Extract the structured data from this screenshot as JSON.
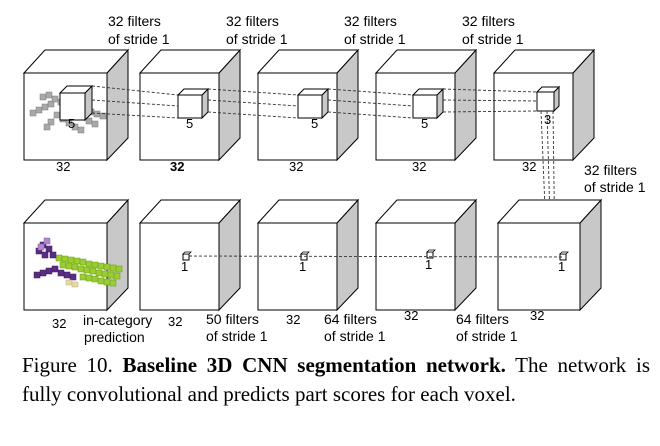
{
  "top_row": {
    "filter_labels": [
      {
        "line1": "32 filters",
        "line2": "of stride 1"
      },
      {
        "line1": "32 filters",
        "line2": "of stride 1"
      },
      {
        "line1": "32 filters",
        "line2": "of stride 1"
      },
      {
        "line1": "32 filters",
        "line2": "of stride 1"
      }
    ],
    "size_labels": [
      "32",
      "32",
      "32",
      "32",
      "32"
    ],
    "kernel_labels": [
      "5",
      "5",
      "5",
      "5",
      "3"
    ]
  },
  "connector_label": {
    "line1": "32 filters",
    "line2": "of stride 1"
  },
  "bottom_row": {
    "filter_labels": [
      {
        "line1": "50 filters",
        "line2": "of stride 1"
      },
      {
        "line1": "64 filters",
        "line2": "of stride 1"
      },
      {
        "line1": "64 filters",
        "line2": "of stride 1"
      }
    ],
    "size_labels": [
      "32",
      "32",
      "32",
      "32",
      "32"
    ],
    "kernel_labels": [
      "1",
      "1",
      "1",
      "1"
    ],
    "prediction_label": {
      "line1": "in-category",
      "line2": "prediction"
    }
  },
  "caption": {
    "prefix": "Figure 10. ",
    "title": "Baseline 3D CNN segmentation network.",
    "body": " The network is fully convolutional and predicts part scores for each voxel."
  },
  "colors": {
    "cube_side": "#c8c8c8",
    "cube_edge": "#000000",
    "voxel_gray": "#a9a9a9",
    "voxel_green": "#9acd32",
    "voxel_purple": "#5a2d82",
    "voxel_tan": "#e8d8a8"
  }
}
